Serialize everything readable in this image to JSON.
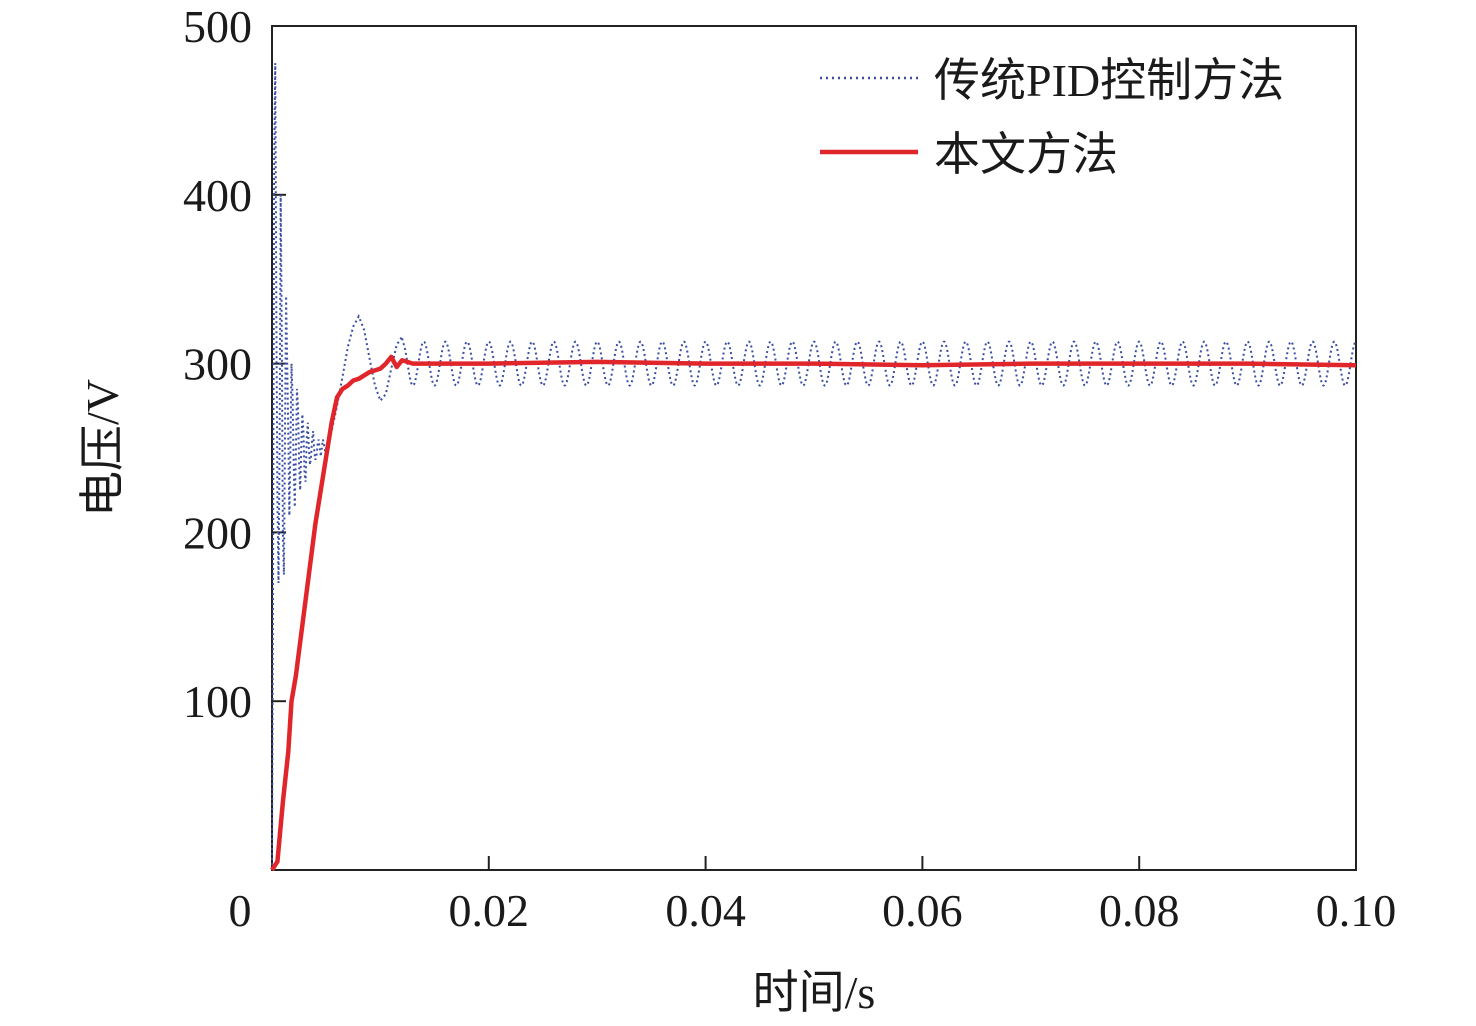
{
  "chart_data": {
    "type": "line",
    "xlabel": "时间/s",
    "ylabel": "电压/V",
    "xlim": [
      0,
      0.1
    ],
    "ylim": [
      0,
      500
    ],
    "xticks": [
      {
        "value": 0,
        "label": "0"
      },
      {
        "value": 0.02,
        "label": "0.02"
      },
      {
        "value": 0.04,
        "label": "0.04"
      },
      {
        "value": 0.06,
        "label": "0.06"
      },
      {
        "value": 0.08,
        "label": "0.08"
      },
      {
        "value": 0.1,
        "label": "0.10"
      }
    ],
    "yticks": [
      {
        "value": 100,
        "label": "100"
      },
      {
        "value": 200,
        "label": "200"
      },
      {
        "value": 300,
        "label": "300"
      },
      {
        "value": 400,
        "label": "400"
      },
      {
        "value": 500,
        "label": "500"
      }
    ],
    "grid": false,
    "legend_position": "top-right",
    "series": [
      {
        "name": "传统PID控制方法",
        "color": "#3a4fa3",
        "style": "dotted",
        "points": [
          [
            0.0,
            0
          ],
          [
            0.0001,
            180
          ],
          [
            0.0002,
            420
          ],
          [
            0.0003,
            478
          ],
          [
            0.0004,
            330
          ],
          [
            0.0005,
            220
          ],
          [
            0.0006,
            170
          ],
          [
            0.0007,
            250
          ],
          [
            0.0008,
            400
          ],
          [
            0.0009,
            320
          ],
          [
            0.001,
            200
          ],
          [
            0.0011,
            175
          ],
          [
            0.0012,
            260
          ],
          [
            0.0013,
            340
          ],
          [
            0.0014,
            300
          ],
          [
            0.0015,
            260
          ],
          [
            0.0016,
            210
          ],
          [
            0.0017,
            250
          ],
          [
            0.0018,
            300
          ],
          [
            0.0019,
            280
          ],
          [
            0.002,
            240
          ],
          [
            0.0021,
            215
          ],
          [
            0.0022,
            245
          ],
          [
            0.0023,
            285
          ],
          [
            0.0024,
            275
          ],
          [
            0.0025,
            240
          ],
          [
            0.0026,
            225
          ],
          [
            0.0027,
            250
          ],
          [
            0.0028,
            270
          ],
          [
            0.0029,
            260
          ],
          [
            0.003,
            235
          ],
          [
            0.0031,
            230
          ],
          [
            0.0032,
            255
          ],
          [
            0.0033,
            265
          ],
          [
            0.0034,
            250
          ],
          [
            0.0035,
            240
          ],
          [
            0.0036,
            245
          ],
          [
            0.0037,
            255
          ],
          [
            0.0038,
            260
          ],
          [
            0.0039,
            248
          ],
          [
            0.004,
            243
          ],
          [
            0.0041,
            245
          ],
          [
            0.0042,
            252
          ],
          [
            0.0043,
            255
          ],
          [
            0.0044,
            250
          ],
          [
            0.0045,
            245
          ],
          [
            0.0046,
            250
          ],
          [
            0.0047,
            255
          ],
          [
            0.0048,
            252
          ],
          [
            0.0049,
            248
          ],
          [
            0.005,
            250
          ],
          [
            0.0055,
            260
          ],
          [
            0.006,
            275
          ],
          [
            0.0065,
            292
          ],
          [
            0.007,
            310
          ],
          [
            0.0075,
            322
          ],
          [
            0.008,
            328
          ],
          [
            0.0085,
            320
          ],
          [
            0.009,
            303
          ],
          [
            0.0095,
            287
          ],
          [
            0.01,
            278
          ],
          [
            0.0105,
            282
          ],
          [
            0.011,
            297
          ],
          [
            0.0115,
            311
          ],
          [
            0.012,
            316
          ]
        ],
        "oscillation": {
          "center": 300,
          "amplitude": 13,
          "frequency_hz": 500,
          "from_x": 0.012,
          "to_x": 0.1
        }
      },
      {
        "name": "本文方法",
        "color": "#e0262a",
        "style": "solid",
        "points": [
          [
            0.0,
            0
          ],
          [
            0.0005,
            5
          ],
          [
            0.001,
            40
          ],
          [
            0.0015,
            70
          ],
          [
            0.0018,
            100
          ],
          [
            0.0022,
            115
          ],
          [
            0.0026,
            135
          ],
          [
            0.003,
            155
          ],
          [
            0.0035,
            180
          ],
          [
            0.004,
            205
          ],
          [
            0.0045,
            225
          ],
          [
            0.005,
            245
          ],
          [
            0.0055,
            265
          ],
          [
            0.006,
            280
          ],
          [
            0.0065,
            285
          ],
          [
            0.007,
            287
          ],
          [
            0.0075,
            290
          ],
          [
            0.008,
            291
          ],
          [
            0.0085,
            293
          ],
          [
            0.009,
            295
          ],
          [
            0.0095,
            296
          ],
          [
            0.01,
            297
          ],
          [
            0.0105,
            300
          ],
          [
            0.011,
            304
          ],
          [
            0.0115,
            298
          ],
          [
            0.012,
            302
          ],
          [
            0.013,
            300
          ],
          [
            0.02,
            300
          ],
          [
            0.03,
            301
          ],
          [
            0.04,
            300
          ],
          [
            0.05,
            300
          ],
          [
            0.06,
            299
          ],
          [
            0.07,
            300
          ],
          [
            0.08,
            300
          ],
          [
            0.09,
            300
          ],
          [
            0.1,
            299
          ]
        ]
      }
    ]
  }
}
